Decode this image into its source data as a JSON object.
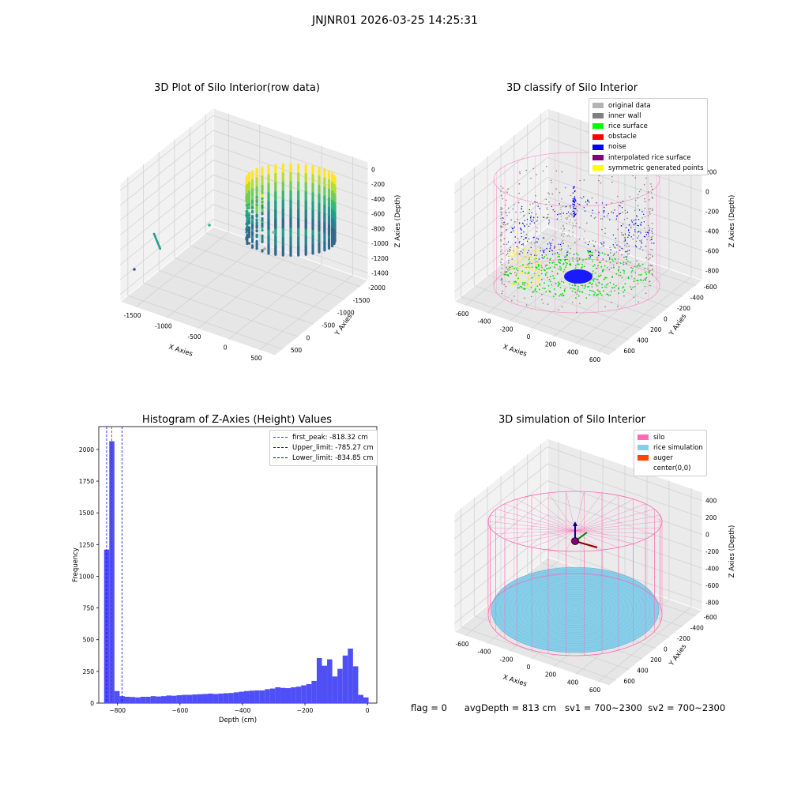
{
  "suptitle": "JNJNR01 2026-03-25 14:25:31",
  "status": {
    "flag": "flag = 0",
    "avg_depth": "avgDepth = 813 cm",
    "sv1": "sv1 = 700~2300",
    "sv2": "sv2 = 700~2300"
  },
  "chart_data": [
    {
      "type": "scatter",
      "title": "3D Plot of Silo Interior(row data)",
      "xlabel": "X Axies",
      "ylabel": "Y Axies",
      "zlabel": "Z Axies (Depth)",
      "x_ticks": [
        "-1500",
        "-1000",
        "-500",
        "0",
        "500"
      ],
      "y_ticks": [
        "500",
        "0",
        "-500",
        "-1000",
        "-1500",
        "-2000"
      ],
      "z_ticks": [
        "0",
        "-200",
        "-400",
        "-600",
        "-800",
        "-1000",
        "-1200",
        "-1400"
      ],
      "xlim": [
        -1700,
        600
      ],
      "ylim": [
        -2100,
        700
      ],
      "zlim": [
        -1450,
        50
      ],
      "colormap": "viridis"
    },
    {
      "type": "scatter",
      "title": "3D classify of Silo Interior",
      "xlabel": "X Axies",
      "ylabel": "Y Axies",
      "zlabel": "Z Axies (Depth)",
      "x_ticks": [
        "-600",
        "-400",
        "-200",
        "0",
        "200",
        "400",
        "600"
      ],
      "y_ticks": [
        "600",
        "400",
        "200",
        "0",
        "-200",
        "-400",
        "-600"
      ],
      "z_ticks": [
        "200",
        "0",
        "-200",
        "-400",
        "-600",
        "-800"
      ],
      "legend": [
        {
          "label": "original data",
          "color": "#b3b3b3"
        },
        {
          "label": "inner wall",
          "color": "#808080"
        },
        {
          "label": "rice surface",
          "color": "#00ff00"
        },
        {
          "label": "obstacle",
          "color": "#ff0000"
        },
        {
          "label": "noise",
          "color": "#0000ff"
        },
        {
          "label": "interpolated rice surface",
          "color": "#800080"
        },
        {
          "label": "symmetric generated points",
          "color": "#ffff00"
        }
      ]
    },
    {
      "type": "bar",
      "title": "Histogram of Z-Axies (Height) Values",
      "xlabel": "Depth (cm)",
      "ylabel": "Frequency",
      "x_ticks": [
        -800,
        -600,
        -400,
        -200,
        0
      ],
      "y_ticks": [
        0,
        250,
        500,
        750,
        1000,
        1250,
        1500,
        1750,
        2000
      ],
      "xlim": [
        -860,
        30
      ],
      "ylim": [
        0,
        2180
      ],
      "bin_width": 16.6,
      "bin_start": -843,
      "values": [
        1210,
        2065,
        95,
        55,
        50,
        48,
        45,
        50,
        50,
        55,
        52,
        55,
        60,
        58,
        62,
        65,
        65,
        68,
        70,
        72,
        75,
        72,
        75,
        78,
        80,
        85,
        90,
        95,
        98,
        100,
        100,
        110,
        115,
        125,
        120,
        118,
        125,
        130,
        140,
        150,
        175,
        355,
        295,
        345,
        210,
        270,
        375,
        430,
        290,
        65,
        45
      ],
      "bar_color": "#4f4ff6",
      "lines": [
        {
          "label": "first_peak: -818.32 cm",
          "x": -818.32,
          "color": "#ff0000"
        },
        {
          "label": "Upper_limit: -785.27 cm",
          "x": -785.27,
          "color": "#0000ff"
        },
        {
          "label": "Lower_limit: -834.85 cm",
          "x": -834.85,
          "color": "#0000ff"
        }
      ]
    },
    {
      "type": "scatter",
      "title": "3D simulation of Silo Interior",
      "xlabel": "X Axies",
      "ylabel": "Y Axies",
      "zlabel": "Z Axies (Depth)",
      "x_ticks": [
        "-600",
        "-400",
        "-200",
        "0",
        "200",
        "400",
        "600"
      ],
      "y_ticks": [
        "600",
        "400",
        "200",
        "0",
        "-200",
        "-400",
        "-600"
      ],
      "z_ticks": [
        "400",
        "200",
        "0",
        "-200",
        "-400",
        "-600",
        "-800"
      ],
      "legend": [
        {
          "label": "silo",
          "color": "#ff69b4"
        },
        {
          "label": "rice simulation",
          "color": "#87ceeb"
        },
        {
          "label": "auger",
          "color": "#ff4500"
        },
        {
          "label": "center(0,0)",
          "color": ""
        }
      ]
    }
  ]
}
